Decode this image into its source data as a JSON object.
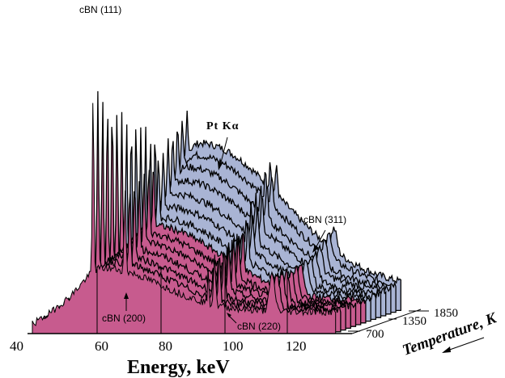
{
  "chart_data": {
    "type": "area",
    "subtype": "waterfall-3d",
    "title": "",
    "xlabel": "Energy, keV",
    "zlabel": "Temperature, K",
    "xlim": [
      40,
      135
    ],
    "x_ticks": [
      40,
      60,
      80,
      100,
      120
    ],
    "z_tick_labels": [
      "700",
      "1350",
      "1850"
    ],
    "temperature_range": [
      700,
      1850
    ],
    "series_count": 14,
    "colors": {
      "low_temperature_fill": "#c75b8e",
      "high_temperature_fill": "#a9b4d4",
      "line": "#000000"
    },
    "annotations": [
      {
        "text": "cBN (111)",
        "energy_keV": 59
      },
      {
        "text": "cBN (200)",
        "energy_keV": 69
      },
      {
        "text": "cBN (220)",
        "energy_keV": 97
      },
      {
        "text": "cBN (311)",
        "energy_keV": 115
      },
      {
        "text": "Pt Kα",
        "energy_keV": 95
      }
    ],
    "peaks_keV": {
      "cBN_111": 59,
      "cBN_200": 69,
      "cBN_220": 97,
      "cBN_311": 115,
      "PtKa": 95
    },
    "series": [
      {
        "name": "700 K",
        "temperature": 700,
        "broad_peak_keV": 62,
        "broad_peak_height": 0.3
      },
      {
        "name": "790 K",
        "temperature": 790,
        "broad_peak_keV": 63,
        "broad_peak_height": 0.33
      },
      {
        "name": "880 K",
        "temperature": 880,
        "broad_peak_keV": 64,
        "broad_peak_height": 0.36
      },
      {
        "name": "970 K",
        "temperature": 970,
        "broad_peak_keV": 65,
        "broad_peak_height": 0.4
      },
      {
        "name": "1060 K",
        "temperature": 1060,
        "broad_peak_keV": 66,
        "broad_peak_height": 0.44
      },
      {
        "name": "1150 K",
        "temperature": 1150,
        "broad_peak_keV": 67,
        "broad_peak_height": 0.48
      },
      {
        "name": "1250 K",
        "temperature": 1250,
        "broad_peak_keV": 68,
        "broad_peak_height": 0.52
      },
      {
        "name": "1350 K",
        "temperature": 1350,
        "broad_peak_keV": 69,
        "broad_peak_height": 0.56
      },
      {
        "name": "1450 K",
        "temperature": 1450,
        "broad_peak_keV": 70,
        "broad_peak_height": 0.62
      },
      {
        "name": "1550 K",
        "temperature": 1550,
        "broad_peak_keV": 70,
        "broad_peak_height": 0.7
      },
      {
        "name": "1650 K",
        "temperature": 1650,
        "broad_peak_keV": 71,
        "broad_peak_height": 0.78
      },
      {
        "name": "1700 K",
        "temperature": 1700,
        "broad_peak_keV": 71,
        "broad_peak_height": 0.86
      },
      {
        "name": "1780 K",
        "temperature": 1780,
        "broad_peak_keV": 72,
        "broad_peak_height": 0.93
      },
      {
        "name": "1850 K",
        "temperature": 1850,
        "broad_peak_keV": 72,
        "broad_peak_height": 1.0
      }
    ]
  }
}
